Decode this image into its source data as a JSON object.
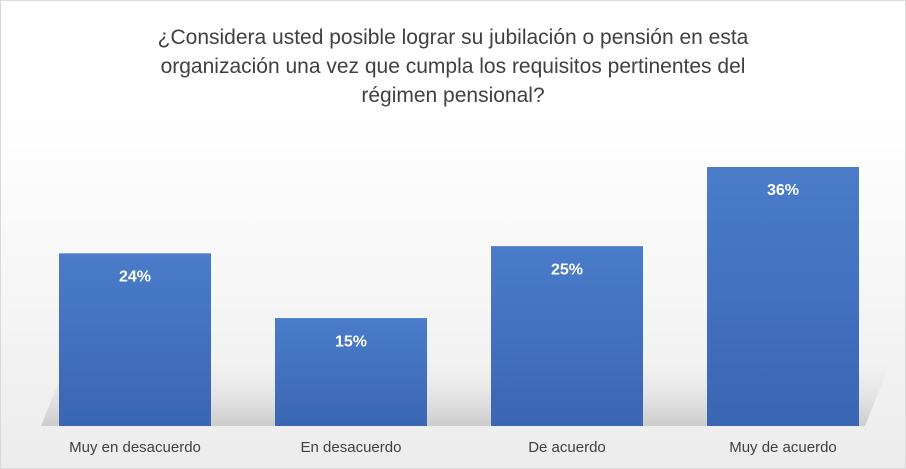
{
  "chart_data": {
    "type": "bar",
    "title": "¿Considera usted posible lograr su jubilación o pensión en esta organización una vez que cumpla los requisitos pertinentes del régimen pensional?",
    "categories": [
      "Muy en desacuerdo",
      "En desacuerdo",
      "De acuerdo",
      "Muy de acuerdo"
    ],
    "values": [
      24,
      15,
      25,
      36
    ],
    "value_labels": [
      "24%",
      "15%",
      "25%",
      "36%"
    ],
    "color": "#4472c4"
  }
}
